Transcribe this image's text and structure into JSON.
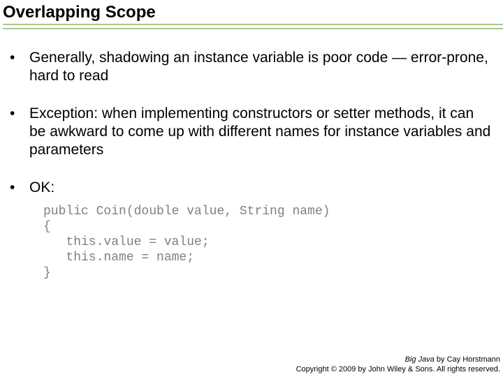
{
  "slide": {
    "title": "Overlapping Scope",
    "rule_color": "#a8c890",
    "bullets": [
      {
        "text": "Generally, shadowing an instance variable is poor code — error-prone, hard to read"
      },
      {
        "text": "Exception: when implementing constructors or setter methods, it can be awkward to come up with different names for instance variables and parameters"
      },
      {
        "text": "OK:"
      }
    ],
    "code": "public Coin(double value, String name)\n{\n   this.value = value;\n   this.name = name;\n}",
    "code_color": "#808080",
    "footer": {
      "book_title": "Big Java",
      "author_line": " by Cay Horstmann",
      "copyright": "Copyright © 2009 by John Wiley & Sons. All rights reserved."
    }
  },
  "typography": {
    "title_fontsize": 24,
    "body_fontsize": 21,
    "code_fontsize": 18,
    "footer_fontsize": 11
  },
  "colors": {
    "background": "#ffffff",
    "text": "#000000",
    "code": "#808080",
    "rule": "#a8c890"
  }
}
